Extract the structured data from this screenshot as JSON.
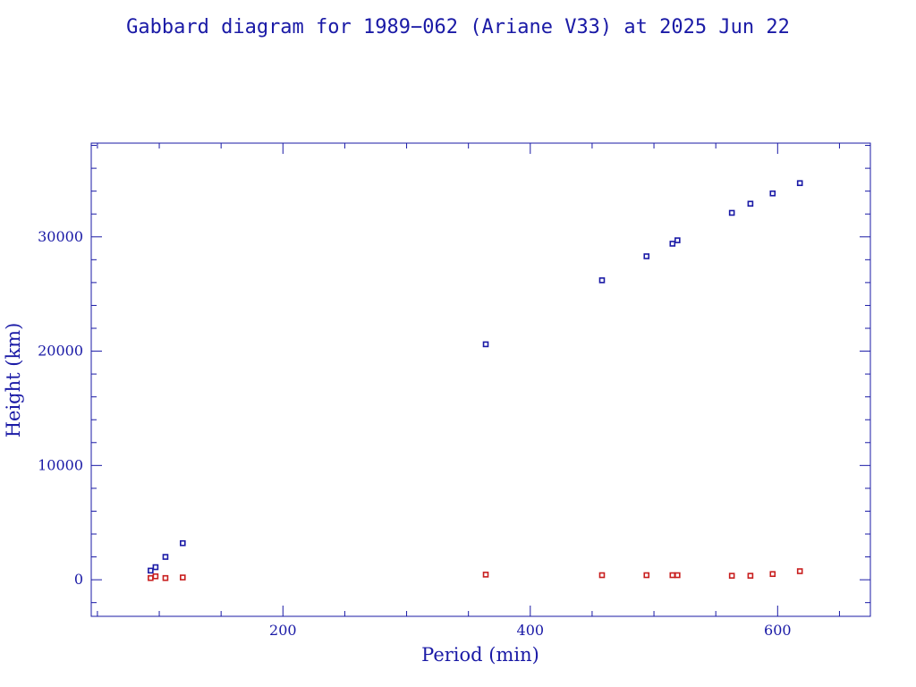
{
  "chart_data": {
    "type": "scatter",
    "title": "Gabbard diagram for 1989−062 (Ariane V33) at 2025 Jun 22",
    "xlabel": "Period (min)",
    "ylabel": "Height (km)",
    "xlim": [
      45,
      675
    ],
    "ylim": [
      -3200,
      38200
    ],
    "x_ticks": [
      200,
      400,
      600
    ],
    "y_ticks": [
      0,
      10000,
      20000,
      30000
    ],
    "x_minor_step": 50,
    "y_minor_step": 2000,
    "series": [
      {
        "color": "#1a1aa6",
        "points": [
          [
            93,
            800
          ],
          [
            97,
            1100
          ],
          [
            105,
            2000
          ],
          [
            119,
            3200
          ],
          [
            364,
            20600
          ],
          [
            458,
            26200
          ],
          [
            494,
            28300
          ],
          [
            515,
            29400
          ],
          [
            519,
            29700
          ],
          [
            563,
            32100
          ],
          [
            578,
            32900
          ],
          [
            596,
            33800
          ],
          [
            618,
            34700
          ]
        ]
      },
      {
        "color": "#c81e1e",
        "points": [
          [
            93,
            150
          ],
          [
            97,
            300
          ],
          [
            105,
            150
          ],
          [
            119,
            200
          ],
          [
            364,
            450
          ],
          [
            458,
            400
          ],
          [
            494,
            400
          ],
          [
            515,
            400
          ],
          [
            519,
            400
          ],
          [
            563,
            350
          ],
          [
            578,
            350
          ],
          [
            596,
            500
          ],
          [
            618,
            750
          ]
        ]
      }
    ]
  }
}
